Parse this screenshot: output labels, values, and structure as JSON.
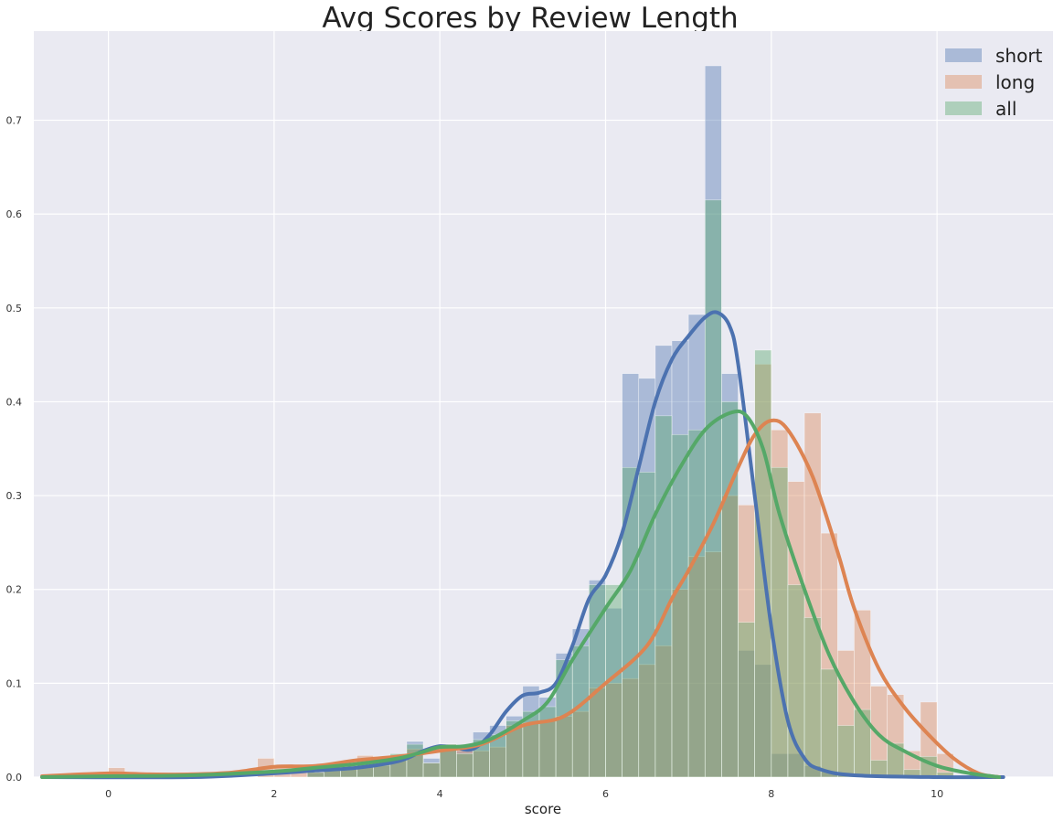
{
  "chart_data": {
    "type": "histogram",
    "title": "Avg Scores by Review Length",
    "xlabel": "score",
    "ylabel": "",
    "xlim": [
      -0.9,
      11.4
    ],
    "ylim": [
      0,
      0.795
    ],
    "xticks": [
      0,
      2,
      4,
      6,
      8,
      10
    ],
    "yticks": [
      0.0,
      0.1,
      0.2,
      0.3,
      0.4,
      0.5,
      0.6,
      0.7
    ],
    "grid": true,
    "legend_position": "top-right",
    "bin_width": 0.2,
    "series": [
      {
        "name": "short",
        "color": "#4c72b0",
        "hist": [
          {
            "x": 2.4,
            "y": 0.005
          },
          {
            "x": 2.6,
            "y": 0.008
          },
          {
            "x": 2.8,
            "y": 0.008
          },
          {
            "x": 3.0,
            "y": 0.012
          },
          {
            "x": 3.2,
            "y": 0.012
          },
          {
            "x": 3.4,
            "y": 0.018
          },
          {
            "x": 3.6,
            "y": 0.038
          },
          {
            "x": 3.8,
            "y": 0.02
          },
          {
            "x": 4.0,
            "y": 0.035
          },
          {
            "x": 4.2,
            "y": 0.028
          },
          {
            "x": 4.4,
            "y": 0.048
          },
          {
            "x": 4.6,
            "y": 0.055
          },
          {
            "x": 4.8,
            "y": 0.065
          },
          {
            "x": 5.0,
            "y": 0.097
          },
          {
            "x": 5.2,
            "y": 0.085
          },
          {
            "x": 5.4,
            "y": 0.132
          },
          {
            "x": 5.6,
            "y": 0.158
          },
          {
            "x": 5.8,
            "y": 0.21
          },
          {
            "x": 6.0,
            "y": 0.18
          },
          {
            "x": 6.2,
            "y": 0.43
          },
          {
            "x": 6.4,
            "y": 0.425
          },
          {
            "x": 6.6,
            "y": 0.46
          },
          {
            "x": 6.8,
            "y": 0.465
          },
          {
            "x": 7.0,
            "y": 0.493
          },
          {
            "x": 7.2,
            "y": 0.758
          },
          {
            "x": 7.4,
            "y": 0.43
          },
          {
            "x": 7.6,
            "y": 0.135
          },
          {
            "x": 7.8,
            "y": 0.12
          },
          {
            "x": 8.0,
            "y": 0.025
          },
          {
            "x": 8.2,
            "y": 0.025
          },
          {
            "x": 8.4,
            "y": 0.012
          },
          {
            "x": 8.6,
            "y": 0.006
          },
          {
            "x": 8.8,
            "y": 0.004
          },
          {
            "x": 9.0,
            "y": 0.002
          }
        ],
        "kde": [
          {
            "x": -0.8,
            "y": 0.0
          },
          {
            "x": 1.0,
            "y": 0.0
          },
          {
            "x": 2.0,
            "y": 0.004
          },
          {
            "x": 2.5,
            "y": 0.007
          },
          {
            "x": 3.0,
            "y": 0.01
          },
          {
            "x": 3.5,
            "y": 0.017
          },
          {
            "x": 3.8,
            "y": 0.028
          },
          {
            "x": 4.0,
            "y": 0.033
          },
          {
            "x": 4.2,
            "y": 0.031
          },
          {
            "x": 4.4,
            "y": 0.03
          },
          {
            "x": 4.6,
            "y": 0.045
          },
          {
            "x": 4.8,
            "y": 0.07
          },
          {
            "x": 5.0,
            "y": 0.087
          },
          {
            "x": 5.2,
            "y": 0.09
          },
          {
            "x": 5.4,
            "y": 0.1
          },
          {
            "x": 5.6,
            "y": 0.14
          },
          {
            "x": 5.8,
            "y": 0.19
          },
          {
            "x": 6.0,
            "y": 0.215
          },
          {
            "x": 6.2,
            "y": 0.26
          },
          {
            "x": 6.4,
            "y": 0.33
          },
          {
            "x": 6.6,
            "y": 0.4
          },
          {
            "x": 6.8,
            "y": 0.445
          },
          {
            "x": 7.0,
            "y": 0.47
          },
          {
            "x": 7.2,
            "y": 0.49
          },
          {
            "x": 7.35,
            "y": 0.495
          },
          {
            "x": 7.5,
            "y": 0.48
          },
          {
            "x": 7.6,
            "y": 0.44
          },
          {
            "x": 7.8,
            "y": 0.3
          },
          {
            "x": 8.0,
            "y": 0.16
          },
          {
            "x": 8.2,
            "y": 0.06
          },
          {
            "x": 8.4,
            "y": 0.02
          },
          {
            "x": 8.6,
            "y": 0.008
          },
          {
            "x": 9.0,
            "y": 0.002
          },
          {
            "x": 10.0,
            "y": 0.0
          },
          {
            "x": 10.8,
            "y": 0.0
          }
        ]
      },
      {
        "name": "long",
        "color": "#dd8452",
        "hist": [
          {
            "x": 0.0,
            "y": 0.01
          },
          {
            "x": 1.8,
            "y": 0.02
          },
          {
            "x": 2.0,
            "y": 0.01
          },
          {
            "x": 2.2,
            "y": 0.01
          },
          {
            "x": 2.4,
            "y": 0.01
          },
          {
            "x": 2.6,
            "y": 0.015
          },
          {
            "x": 2.8,
            "y": 0.015
          },
          {
            "x": 3.0,
            "y": 0.023
          },
          {
            "x": 3.2,
            "y": 0.022
          },
          {
            "x": 3.4,
            "y": 0.02
          },
          {
            "x": 3.6,
            "y": 0.03
          },
          {
            "x": 3.8,
            "y": 0.015
          },
          {
            "x": 4.0,
            "y": 0.035
          },
          {
            "x": 4.2,
            "y": 0.03
          },
          {
            "x": 4.4,
            "y": 0.028
          },
          {
            "x": 4.6,
            "y": 0.032
          },
          {
            "x": 4.8,
            "y": 0.055
          },
          {
            "x": 5.0,
            "y": 0.058
          },
          {
            "x": 5.2,
            "y": 0.06
          },
          {
            "x": 5.4,
            "y": 0.065
          },
          {
            "x": 5.6,
            "y": 0.07
          },
          {
            "x": 5.8,
            "y": 0.095
          },
          {
            "x": 6.0,
            "y": 0.1
          },
          {
            "x": 6.2,
            "y": 0.105
          },
          {
            "x": 6.4,
            "y": 0.12
          },
          {
            "x": 6.6,
            "y": 0.14
          },
          {
            "x": 6.8,
            "y": 0.2
          },
          {
            "x": 7.0,
            "y": 0.235
          },
          {
            "x": 7.2,
            "y": 0.24
          },
          {
            "x": 7.4,
            "y": 0.3
          },
          {
            "x": 7.6,
            "y": 0.29
          },
          {
            "x": 7.8,
            "y": 0.44
          },
          {
            "x": 8.0,
            "y": 0.37
          },
          {
            "x": 8.2,
            "y": 0.315
          },
          {
            "x": 8.4,
            "y": 0.388
          },
          {
            "x": 8.6,
            "y": 0.26
          },
          {
            "x": 8.8,
            "y": 0.135
          },
          {
            "x": 9.0,
            "y": 0.178
          },
          {
            "x": 9.2,
            "y": 0.097
          },
          {
            "x": 9.4,
            "y": 0.088
          },
          {
            "x": 9.6,
            "y": 0.028
          },
          {
            "x": 9.8,
            "y": 0.08
          },
          {
            "x": 10.0,
            "y": 0.025
          }
        ],
        "kde": [
          {
            "x": -0.8,
            "y": 0.001
          },
          {
            "x": 0.0,
            "y": 0.004
          },
          {
            "x": 0.5,
            "y": 0.003
          },
          {
            "x": 1.0,
            "y": 0.003
          },
          {
            "x": 1.5,
            "y": 0.005
          },
          {
            "x": 2.0,
            "y": 0.011
          },
          {
            "x": 2.5,
            "y": 0.012
          },
          {
            "x": 3.0,
            "y": 0.018
          },
          {
            "x": 3.5,
            "y": 0.022
          },
          {
            "x": 4.0,
            "y": 0.028
          },
          {
            "x": 4.5,
            "y": 0.035
          },
          {
            "x": 5.0,
            "y": 0.055
          },
          {
            "x": 5.5,
            "y": 0.065
          },
          {
            "x": 6.0,
            "y": 0.1
          },
          {
            "x": 6.5,
            "y": 0.14
          },
          {
            "x": 6.8,
            "y": 0.19
          },
          {
            "x": 7.0,
            "y": 0.22
          },
          {
            "x": 7.3,
            "y": 0.27
          },
          {
            "x": 7.6,
            "y": 0.33
          },
          {
            "x": 7.8,
            "y": 0.365
          },
          {
            "x": 8.0,
            "y": 0.38
          },
          {
            "x": 8.2,
            "y": 0.37
          },
          {
            "x": 8.5,
            "y": 0.32
          },
          {
            "x": 8.8,
            "y": 0.24
          },
          {
            "x": 9.0,
            "y": 0.18
          },
          {
            "x": 9.3,
            "y": 0.115
          },
          {
            "x": 9.6,
            "y": 0.075
          },
          {
            "x": 9.9,
            "y": 0.045
          },
          {
            "x": 10.2,
            "y": 0.02
          },
          {
            "x": 10.5,
            "y": 0.004
          },
          {
            "x": 10.75,
            "y": 0.0
          }
        ]
      },
      {
        "name": "all",
        "color": "#55a868",
        "hist": [
          {
            "x": 2.4,
            "y": 0.005
          },
          {
            "x": 2.6,
            "y": 0.008
          },
          {
            "x": 2.8,
            "y": 0.01
          },
          {
            "x": 3.0,
            "y": 0.015
          },
          {
            "x": 3.2,
            "y": 0.02
          },
          {
            "x": 3.4,
            "y": 0.025
          },
          {
            "x": 3.6,
            "y": 0.035
          },
          {
            "x": 3.8,
            "y": 0.015
          },
          {
            "x": 4.0,
            "y": 0.035
          },
          {
            "x": 4.2,
            "y": 0.025
          },
          {
            "x": 4.4,
            "y": 0.04
          },
          {
            "x": 4.6,
            "y": 0.045
          },
          {
            "x": 4.8,
            "y": 0.06
          },
          {
            "x": 5.0,
            "y": 0.07
          },
          {
            "x": 5.2,
            "y": 0.075
          },
          {
            "x": 5.4,
            "y": 0.125
          },
          {
            "x": 5.6,
            "y": 0.14
          },
          {
            "x": 5.8,
            "y": 0.205
          },
          {
            "x": 6.0,
            "y": 0.205
          },
          {
            "x": 6.2,
            "y": 0.33
          },
          {
            "x": 6.4,
            "y": 0.325
          },
          {
            "x": 6.6,
            "y": 0.385
          },
          {
            "x": 6.8,
            "y": 0.365
          },
          {
            "x": 7.0,
            "y": 0.37
          },
          {
            "x": 7.2,
            "y": 0.615
          },
          {
            "x": 7.4,
            "y": 0.4
          },
          {
            "x": 7.6,
            "y": 0.165
          },
          {
            "x": 7.8,
            "y": 0.455
          },
          {
            "x": 8.0,
            "y": 0.33
          },
          {
            "x": 8.2,
            "y": 0.205
          },
          {
            "x": 8.4,
            "y": 0.17
          },
          {
            "x": 8.6,
            "y": 0.115
          },
          {
            "x": 8.8,
            "y": 0.055
          },
          {
            "x": 9.0,
            "y": 0.072
          },
          {
            "x": 9.2,
            "y": 0.018
          },
          {
            "x": 9.4,
            "y": 0.036
          },
          {
            "x": 9.6,
            "y": 0.008
          },
          {
            "x": 9.8,
            "y": 0.022
          },
          {
            "x": 10.0,
            "y": 0.005
          }
        ],
        "kde": [
          {
            "x": -0.8,
            "y": 0.0
          },
          {
            "x": 0.0,
            "y": 0.001
          },
          {
            "x": 1.0,
            "y": 0.002
          },
          {
            "x": 2.0,
            "y": 0.006
          },
          {
            "x": 2.5,
            "y": 0.01
          },
          {
            "x": 3.0,
            "y": 0.014
          },
          {
            "x": 3.5,
            "y": 0.02
          },
          {
            "x": 3.8,
            "y": 0.027
          },
          {
            "x": 4.0,
            "y": 0.032
          },
          {
            "x": 4.3,
            "y": 0.033
          },
          {
            "x": 4.6,
            "y": 0.04
          },
          {
            "x": 5.0,
            "y": 0.06
          },
          {
            "x": 5.3,
            "y": 0.08
          },
          {
            "x": 5.6,
            "y": 0.125
          },
          {
            "x": 6.0,
            "y": 0.18
          },
          {
            "x": 6.3,
            "y": 0.22
          },
          {
            "x": 6.6,
            "y": 0.28
          },
          {
            "x": 6.9,
            "y": 0.33
          },
          {
            "x": 7.2,
            "y": 0.37
          },
          {
            "x": 7.5,
            "y": 0.388
          },
          {
            "x": 7.7,
            "y": 0.385
          },
          {
            "x": 7.9,
            "y": 0.35
          },
          {
            "x": 8.1,
            "y": 0.28
          },
          {
            "x": 8.4,
            "y": 0.2
          },
          {
            "x": 8.7,
            "y": 0.13
          },
          {
            "x": 9.0,
            "y": 0.08
          },
          {
            "x": 9.3,
            "y": 0.045
          },
          {
            "x": 9.6,
            "y": 0.028
          },
          {
            "x": 10.0,
            "y": 0.012
          },
          {
            "x": 10.4,
            "y": 0.004
          },
          {
            "x": 10.75,
            "y": 0.0
          }
        ]
      }
    ]
  }
}
